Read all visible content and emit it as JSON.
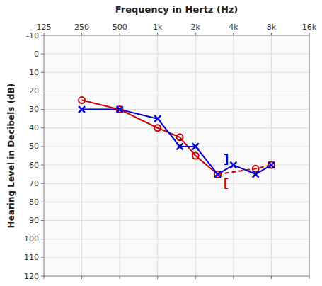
{
  "chart_data": {
    "type": "line",
    "title": "Frequency in Hertz (Hz)",
    "y_label": "Hearing Level in Decibels (dB)",
    "log": "x",
    "grid": true,
    "xlim": [
      125,
      16000
    ],
    "xticks": [
      125,
      250,
      500,
      {
        "value": 1000,
        "label": "1k"
      },
      {
        "value": 2000,
        "label": "2k"
      },
      {
        "value": 4000,
        "label": "4k"
      },
      {
        "value": 8000,
        "label": "8k"
      },
      {
        "value": 16000,
        "label": "16k"
      }
    ],
    "ylim": [
      120,
      -10
    ],
    "yticks": [
      -10,
      0,
      10,
      20,
      30,
      40,
      50,
      60,
      70,
      80,
      90,
      100,
      110,
      120
    ],
    "series": [
      {
        "type": "line",
        "color": "#cc0000",
        "line_style": "solid",
        "x": [
          250,
          500,
          1000,
          1500,
          2000,
          3000
        ],
        "values": [
          25,
          30,
          40,
          45,
          55,
          65
        ]
      },
      {
        "type": "line",
        "color": "#cc0000",
        "line_style": "dashed",
        "x": [
          3000,
          6000,
          8000
        ],
        "values": [
          65,
          62,
          60
        ]
      },
      {
        "type": "line",
        "color": "#0000cc",
        "line_style": "solid",
        "x": [
          250,
          500,
          1000,
          1500,
          2000,
          3000
        ],
        "values": [
          30,
          30,
          35,
          50,
          50,
          65
        ]
      },
      {
        "type": "line",
        "color": "#0000cc",
        "line_style": "solid",
        "x": [
          3000,
          4000
        ],
        "values": [
          65,
          60
        ]
      },
      {
        "type": "line",
        "color": "#0000cc",
        "line_style": "solid",
        "x": [
          4000,
          6000
        ],
        "values": [
          60,
          65
        ]
      },
      {
        "type": "line",
        "color": "#0000cc",
        "line_style": "solid",
        "x": [
          6000,
          8000
        ],
        "values": [
          65,
          60
        ]
      },
      {
        "type": "scatter",
        "color": "#cc0000",
        "marker": "circle-open",
        "x": [
          250,
          500,
          1000,
          1500,
          2000,
          3000,
          6000,
          8000
        ],
        "values": [
          25,
          30,
          40,
          45,
          55,
          65,
          62,
          60
        ]
      },
      {
        "type": "scatter",
        "color": "#0000cc",
        "marker": "x",
        "x": [
          250,
          500,
          1000,
          1500,
          2000,
          3000,
          4000,
          6000,
          8000
        ],
        "values": [
          30,
          30,
          35,
          50,
          50,
          65,
          60,
          65,
          60
        ]
      }
    ],
    "annotations": [
      {
        "text": "]",
        "x": 3500,
        "y": 57,
        "color": "#0000cc"
      },
      {
        "text": "[",
        "x": 3500,
        "y": 70,
        "color": "#cc0000"
      }
    ]
  }
}
